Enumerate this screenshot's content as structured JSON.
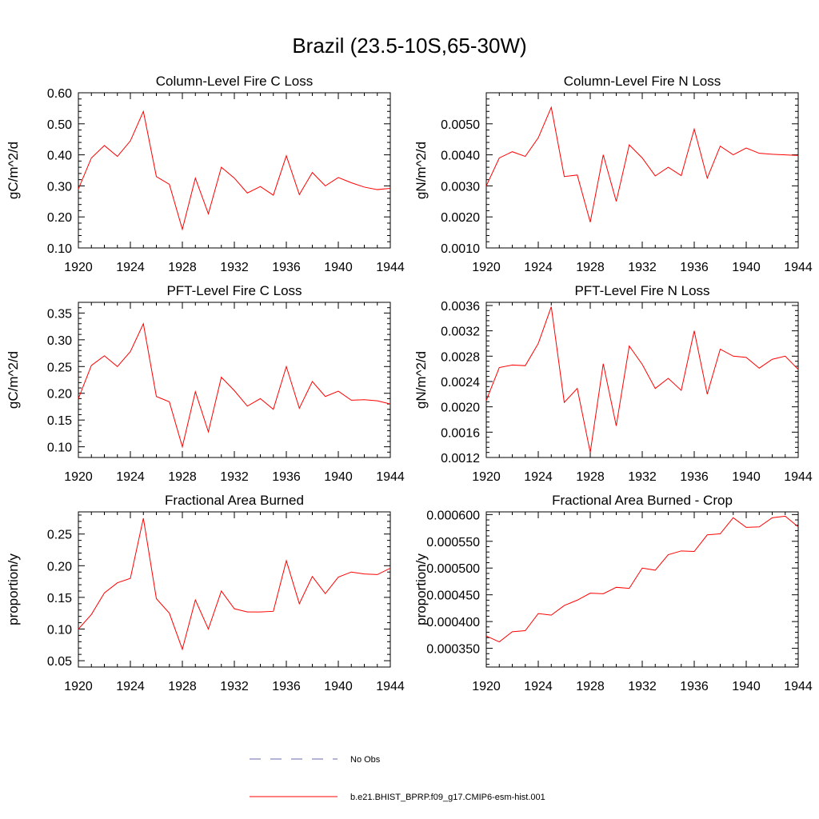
{
  "figure": {
    "title": "Brazil (23.5-10S,65-30W)",
    "legend": [
      {
        "label": "No Obs",
        "color": "#6a6ab0",
        "style": "dashed"
      },
      {
        "label": "b.e21.BHIST_BPRP.f09_g17.CMIP6-esm-hist.001",
        "color": "#ff0000",
        "style": "solid"
      }
    ]
  },
  "chart_data": [
    {
      "type": "line",
      "title": "Column-Level Fire C Loss",
      "xlabel": "",
      "ylabel": "gC/m^2/d",
      "xlim": [
        1920,
        1944
      ],
      "ylim": [
        0.1,
        0.6
      ],
      "xticks": [
        1920,
        1924,
        1928,
        1932,
        1936,
        1940,
        1944
      ],
      "yticks": [
        0.1,
        0.2,
        0.3,
        0.4,
        0.5,
        0.6
      ],
      "ytick_labels": [
        "0.10",
        "0.20",
        "0.30",
        "0.40",
        "0.50",
        "0.60"
      ],
      "x": [
        1920,
        1921,
        1922,
        1923,
        1924,
        1925,
        1926,
        1927,
        1928,
        1929,
        1930,
        1931,
        1932,
        1933,
        1934,
        1935,
        1936,
        1937,
        1938,
        1939,
        1940,
        1941,
        1942,
        1943,
        1944
      ],
      "series": [
        {
          "color": "#ff0000",
          "values": [
            0.29,
            0.39,
            0.43,
            0.395,
            0.445,
            0.54,
            0.33,
            0.305,
            0.16,
            0.325,
            0.21,
            0.36,
            0.325,
            0.277,
            0.298,
            0.27,
            0.397,
            0.272,
            0.343,
            0.3,
            0.327,
            0.31,
            0.296,
            0.288,
            0.292
          ]
        }
      ]
    },
    {
      "type": "line",
      "title": "Column-Level Fire N Loss",
      "xlabel": "",
      "ylabel": "gN/m^2/d",
      "xlim": [
        1920,
        1944
      ],
      "ylim": [
        0.001,
        0.006
      ],
      "xticks": [
        1920,
        1924,
        1928,
        1932,
        1936,
        1940,
        1944
      ],
      "yticks": [
        0.001,
        0.002,
        0.003,
        0.004,
        0.005
      ],
      "ytick_labels": [
        "0.0010",
        "0.0020",
        "0.0030",
        "0.0040",
        "0.0050"
      ],
      "x": [
        1920,
        1921,
        1922,
        1923,
        1924,
        1925,
        1926,
        1927,
        1928,
        1929,
        1930,
        1931,
        1932,
        1933,
        1934,
        1935,
        1936,
        1937,
        1938,
        1939,
        1940,
        1941,
        1942,
        1943,
        1944
      ],
      "series": [
        {
          "color": "#ff0000",
          "values": [
            0.003,
            0.0039,
            0.0041,
            0.00395,
            0.00455,
            0.00553,
            0.0033,
            0.00335,
            0.00183,
            0.004,
            0.0025,
            0.00432,
            0.0039,
            0.00332,
            0.0036,
            0.00333,
            0.00483,
            0.00325,
            0.00428,
            0.004,
            0.00422,
            0.00405,
            0.00402,
            0.004,
            0.00398
          ]
        }
      ]
    },
    {
      "type": "line",
      "title": "PFT-Level Fire C Loss",
      "xlabel": "",
      "ylabel": "gC/m^2/d",
      "xlim": [
        1920,
        1944
      ],
      "ylim": [
        0.08,
        0.37
      ],
      "xticks": [
        1920,
        1924,
        1928,
        1932,
        1936,
        1940,
        1944
      ],
      "yticks": [
        0.1,
        0.15,
        0.2,
        0.25,
        0.3,
        0.35
      ],
      "ytick_labels": [
        "0.10",
        "0.15",
        "0.20",
        "0.25",
        "0.30",
        "0.35"
      ],
      "x": [
        1920,
        1921,
        1922,
        1923,
        1924,
        1925,
        1926,
        1927,
        1928,
        1929,
        1930,
        1931,
        1932,
        1933,
        1934,
        1935,
        1936,
        1937,
        1938,
        1939,
        1940,
        1941,
        1942,
        1943,
        1944
      ],
      "series": [
        {
          "color": "#ff0000",
          "values": [
            0.19,
            0.252,
            0.27,
            0.25,
            0.278,
            0.33,
            0.194,
            0.184,
            0.1,
            0.203,
            0.128,
            0.23,
            0.205,
            0.176,
            0.19,
            0.17,
            0.25,
            0.172,
            0.222,
            0.194,
            0.204,
            0.187,
            0.188,
            0.186,
            0.18
          ]
        }
      ]
    },
    {
      "type": "line",
      "title": "PFT-Level Fire N Loss",
      "xlabel": "",
      "ylabel": "gN/m^2/d",
      "xlim": [
        1920,
        1944
      ],
      "ylim": [
        0.0012,
        0.00365
      ],
      "xticks": [
        1920,
        1924,
        1928,
        1932,
        1936,
        1940,
        1944
      ],
      "yticks": [
        0.0012,
        0.0016,
        0.002,
        0.0024,
        0.0028,
        0.0032,
        0.0036
      ],
      "ytick_labels": [
        "0.0012",
        "0.0016",
        "0.0020",
        "0.0024",
        "0.0028",
        "0.0032",
        "0.0036"
      ],
      "x": [
        1920,
        1921,
        1922,
        1923,
        1924,
        1925,
        1926,
        1927,
        1928,
        1929,
        1930,
        1931,
        1932,
        1933,
        1934,
        1935,
        1936,
        1937,
        1938,
        1939,
        1940,
        1941,
        1942,
        1943,
        1944
      ],
      "series": [
        {
          "color": "#ff0000",
          "values": [
            0.0021,
            0.00262,
            0.00266,
            0.00265,
            0.003,
            0.00358,
            0.00207,
            0.00229,
            0.00128,
            0.00268,
            0.0017,
            0.00296,
            0.00267,
            0.00229,
            0.00245,
            0.00226,
            0.0032,
            0.0022,
            0.00291,
            0.0028,
            0.00278,
            0.00261,
            0.00275,
            0.0028,
            0.00259
          ]
        }
      ]
    },
    {
      "type": "line",
      "title": "Fractional Area Burned",
      "xlabel": "",
      "ylabel": "proportion/y",
      "xlim": [
        1920,
        1944
      ],
      "ylim": [
        0.04,
        0.285
      ],
      "xticks": [
        1920,
        1924,
        1928,
        1932,
        1936,
        1940,
        1944
      ],
      "yticks": [
        0.05,
        0.1,
        0.15,
        0.2,
        0.25
      ],
      "ytick_labels": [
        "0.05",
        "0.10",
        "0.15",
        "0.20",
        "0.25"
      ],
      "x": [
        1920,
        1921,
        1922,
        1923,
        1924,
        1925,
        1926,
        1927,
        1928,
        1929,
        1930,
        1931,
        1932,
        1933,
        1934,
        1935,
        1936,
        1937,
        1938,
        1939,
        1940,
        1941,
        1942,
        1943,
        1944
      ],
      "series": [
        {
          "color": "#ff0000",
          "values": [
            0.1,
            0.123,
            0.157,
            0.173,
            0.18,
            0.275,
            0.148,
            0.125,
            0.068,
            0.146,
            0.1,
            0.16,
            0.132,
            0.127,
            0.127,
            0.128,
            0.208,
            0.14,
            0.183,
            0.156,
            0.182,
            0.19,
            0.187,
            0.186,
            0.196
          ]
        }
      ]
    },
    {
      "type": "line",
      "title": "Fractional Area Burned - Crop",
      "xlabel": "",
      "ylabel": "proportion/y",
      "xlim": [
        1920,
        1944
      ],
      "ylim": [
        0.000315,
        0.000605
      ],
      "xticks": [
        1920,
        1924,
        1928,
        1932,
        1936,
        1940,
        1944
      ],
      "yticks": [
        0.00035,
        0.0004,
        0.00045,
        0.0005,
        0.00055,
        0.0006
      ],
      "ytick_labels": [
        "0.000350",
        "0.000400",
        "0.000450",
        "0.000500",
        "0.000550",
        "0.000600"
      ],
      "x": [
        1920,
        1921,
        1922,
        1923,
        1924,
        1925,
        1926,
        1927,
        1928,
        1929,
        1930,
        1931,
        1932,
        1933,
        1934,
        1935,
        1936,
        1937,
        1938,
        1939,
        1940,
        1941,
        1942,
        1943,
        1944
      ],
      "series": [
        {
          "color": "#ff0000",
          "values": [
            0.000373,
            0.000362,
            0.000381,
            0.000383,
            0.000415,
            0.000412,
            0.00043,
            0.00044,
            0.000453,
            0.000452,
            0.000464,
            0.000462,
            0.0005,
            0.000496,
            0.000525,
            0.000532,
            0.000531,
            0.000562,
            0.000564,
            0.000594,
            0.000576,
            0.000577,
            0.000594,
            0.000597,
            0.000577
          ]
        }
      ]
    }
  ]
}
